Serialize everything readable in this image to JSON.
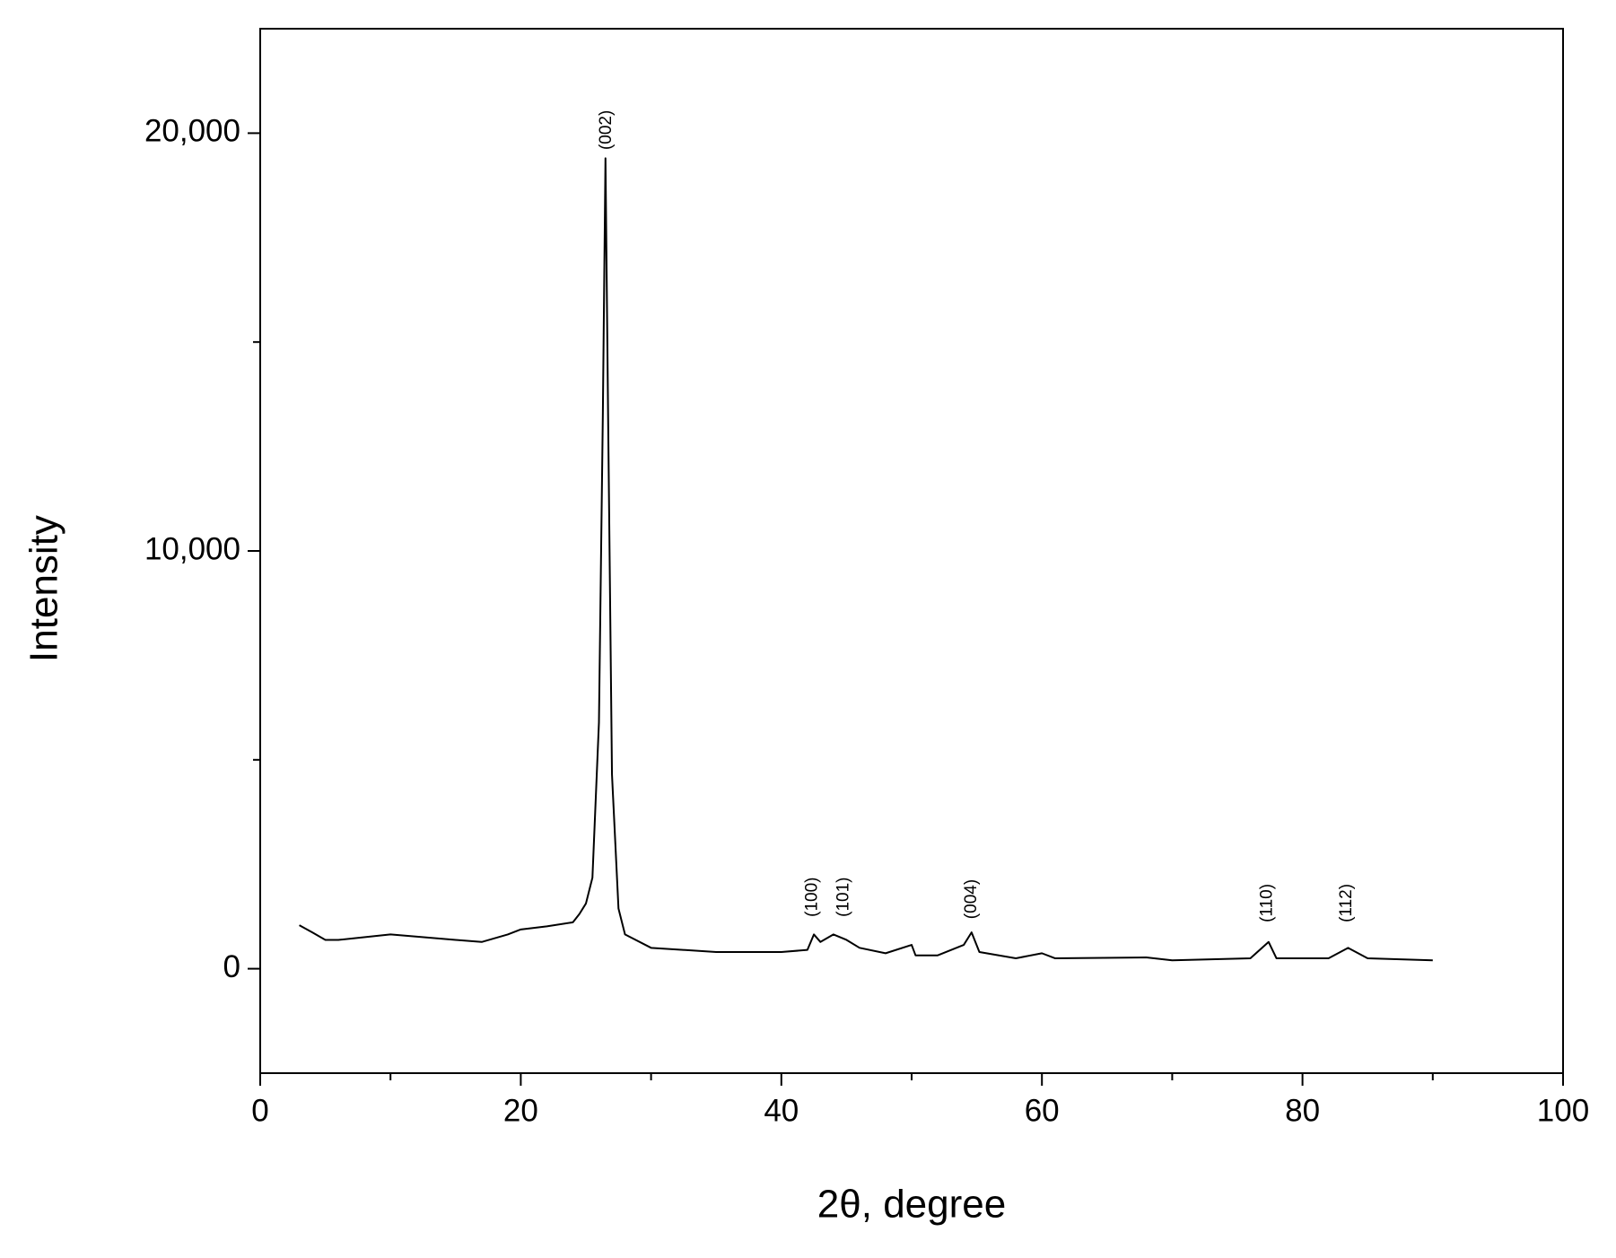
{
  "chart_data": {
    "type": "line",
    "xlabel": "2θ, degree",
    "ylabel": "Intensity",
    "x": [
      3,
      4,
      5,
      6,
      10,
      15,
      17,
      19,
      20,
      22,
      24,
      24.5,
      25,
      25.5,
      26,
      26.3,
      26.5,
      26.7,
      27,
      27.5,
      28,
      30,
      35,
      40,
      42,
      42.5,
      43,
      44,
      45,
      46,
      48,
      50,
      50.3,
      52,
      54,
      54.6,
      55.2,
      58,
      60,
      61,
      68,
      70,
      76,
      77.4,
      78,
      82,
      83.5,
      85,
      90
    ],
    "values": [
      1040,
      870,
      690,
      690,
      820,
      690,
      640,
      820,
      940,
      1015,
      1110,
      1310,
      1560,
      2180,
      5900,
      13300,
      19400,
      13300,
      4650,
      1440,
      820,
      500,
      400,
      400,
      450,
      820,
      640,
      820,
      690,
      500,
      370,
      570,
      320,
      320,
      570,
      870,
      400,
      250,
      370,
      250,
      270,
      200,
      250,
      640,
      250,
      250,
      500,
      250,
      200
    ],
    "color": "#000000",
    "xlim": [
      0,
      100
    ],
    "xticks": [
      0,
      20,
      40,
      60,
      80,
      100
    ],
    "xticks_minor": [
      10,
      30,
      50,
      70,
      90
    ],
    "ylim": [
      -2500,
      22500
    ],
    "yticks": [
      {
        "value": 0,
        "label": "0"
      },
      {
        "value": 10000,
        "label": "10,000"
      },
      {
        "value": 20000,
        "label": "20,000"
      }
    ],
    "yticks_minor": [
      5000,
      15000
    ],
    "annotations": [
      {
        "text": "(002)",
        "x": 26.6,
        "y": 19600
      },
      {
        "text": "(100)",
        "x": 42.4,
        "y": 1240
      },
      {
        "text": "(101)",
        "x": 44.8,
        "y": 1240
      },
      {
        "text": "(004)",
        "x": 54.6,
        "y": 1190
      },
      {
        "text": "(110)",
        "x": 77.3,
        "y": 1110
      },
      {
        "text": "(112)",
        "x": 83.4,
        "y": 1110
      }
    ]
  }
}
